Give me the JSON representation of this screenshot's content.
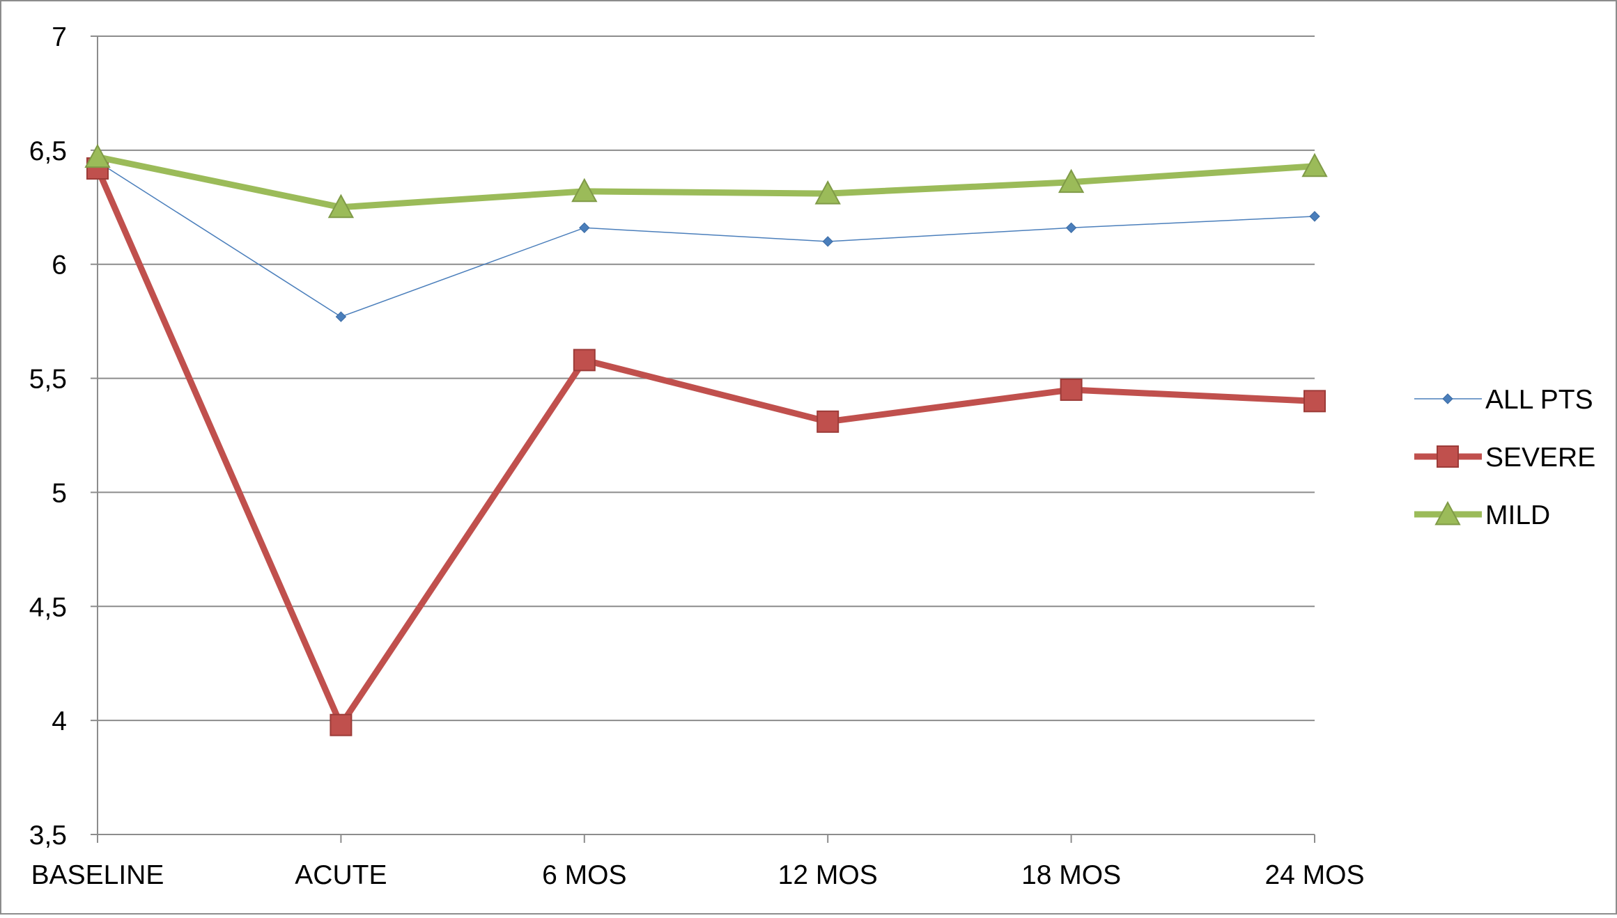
{
  "chart_data": {
    "type": "line",
    "title": "",
    "xlabel": "",
    "ylabel": "",
    "categories": [
      "BASELINE",
      "ACUTE",
      "6 MOS",
      "12 MOS",
      "18 MOS",
      "24 MOS"
    ],
    "ylim": [
      3.5,
      7
    ],
    "yticks": [
      3.5,
      4,
      4.5,
      5,
      5.5,
      6,
      6.5,
      7
    ],
    "ytick_labels": [
      "3,5",
      "4",
      "4,5",
      "5",
      "5,5",
      "6",
      "6,5",
      "7"
    ],
    "grid": true,
    "legend_position": "right",
    "series": [
      {
        "name": "ALL PTS",
        "values": [
          6.45,
          5.77,
          6.16,
          6.1,
          6.16,
          6.21
        ],
        "color": "#4a7ebb",
        "marker": "diamond",
        "line_weight": "thin"
      },
      {
        "name": "SEVERE",
        "values": [
          6.42,
          3.98,
          5.58,
          5.31,
          5.45,
          5.4
        ],
        "color": "#c0504d",
        "marker": "square",
        "line_weight": "thick"
      },
      {
        "name": "MILD",
        "values": [
          6.47,
          6.25,
          6.32,
          6.31,
          6.36,
          6.43
        ],
        "color": "#9bbb59",
        "marker": "triangle",
        "line_weight": "thick"
      }
    ]
  }
}
